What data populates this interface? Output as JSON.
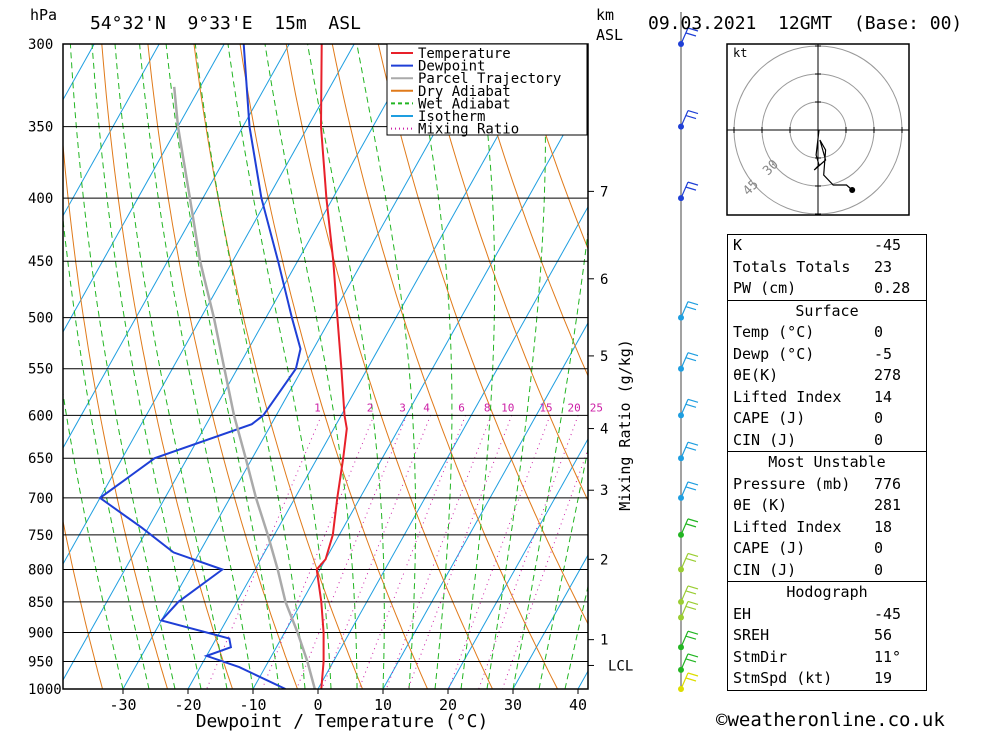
{
  "header": {
    "hpa_label": "hPa",
    "location": "54°32'N  9°33'E  15m  ASL",
    "km_label": "km",
    "asl_label": "ASL",
    "datetime": "09.03.2021  12GMT  (Base: 00)"
  },
  "legend": [
    {
      "label": "Temperature",
      "color": "#e8202a",
      "style": "solid"
    },
    {
      "label": "Dewpoint",
      "color": "#1f3fd6",
      "style": "solid"
    },
    {
      "label": "Parcel Trajectory",
      "color": "#aaaaaa",
      "style": "solid"
    },
    {
      "label": "Dry Adiabat",
      "color": "#e07a1a",
      "style": "solid"
    },
    {
      "label": "Wet Adiabat",
      "color": "#22b522",
      "style": "dashed"
    },
    {
      "label": "Isotherm",
      "color": "#1e9ee0",
      "style": "solid"
    },
    {
      "label": "Mixing Ratio",
      "color": "#cc1fa6",
      "style": "dotted"
    }
  ],
  "chart_data": {
    "type": "line",
    "chart_kind": "skew-T log-p sounding",
    "xlabel": "Dewpoint / Temperature (°C)",
    "ylabel_left": "hPa",
    "ylabel_right": "Mixing Ratio (g/kg)",
    "pressure_ticks": [
      1000,
      950,
      900,
      850,
      800,
      750,
      700,
      650,
      600,
      550,
      500,
      450,
      400,
      350,
      300
    ],
    "temp_ticks": [
      -30,
      -20,
      -10,
      0,
      10,
      20,
      30,
      40
    ],
    "km_ticks": [
      {
        "p": 957,
        "label": "LCL"
      },
      {
        "p": 912,
        "label": "1"
      },
      {
        "p": 785,
        "label": "2"
      },
      {
        "p": 690,
        "label": "3"
      },
      {
        "p": 615,
        "label": "4"
      },
      {
        "p": 537,
        "label": "5"
      },
      {
        "p": 465,
        "label": "6"
      },
      {
        "p": 395,
        "label": "7"
      }
    ],
    "mixing_ratio_labels": [
      "1",
      "2",
      "3",
      "4",
      "6",
      "8",
      "10",
      "15",
      "20",
      "25"
    ],
    "series": [
      {
        "name": "Temperature",
        "color": "#e8202a",
        "points": [
          [
            1000,
            0.5
          ],
          [
            950,
            -1.5
          ],
          [
            900,
            -4
          ],
          [
            850,
            -7
          ],
          [
            800,
            -10.5
          ],
          [
            785,
            -10
          ],
          [
            750,
            -11
          ],
          [
            700,
            -13.5
          ],
          [
            650,
            -16
          ],
          [
            615,
            -18
          ],
          [
            600,
            -19.5
          ],
          [
            550,
            -24
          ],
          [
            500,
            -29
          ],
          [
            450,
            -34.5
          ],
          [
            400,
            -41
          ],
          [
            350,
            -48
          ],
          [
            300,
            -55
          ]
        ]
      },
      {
        "name": "Dewpoint",
        "color": "#1f3fd6",
        "points": [
          [
            1000,
            -5
          ],
          [
            960,
            -14
          ],
          [
            940,
            -20
          ],
          [
            925,
            -17
          ],
          [
            910,
            -18
          ],
          [
            880,
            -30
          ],
          [
            850,
            -29
          ],
          [
            800,
            -25
          ],
          [
            775,
            -34
          ],
          [
            740,
            -41
          ],
          [
            700,
            -50
          ],
          [
            650,
            -45
          ],
          [
            610,
            -33
          ],
          [
            600,
            -32
          ],
          [
            550,
            -31
          ],
          [
            530,
            -32
          ],
          [
            500,
            -36
          ],
          [
            450,
            -43
          ],
          [
            400,
            -51
          ],
          [
            350,
            -59
          ],
          [
            300,
            -67
          ]
        ]
      },
      {
        "name": "Parcel Trajectory",
        "color": "#aaaaaa",
        "points": [
          [
            1000,
            -0.5
          ],
          [
            950,
            -4
          ],
          [
            900,
            -8
          ],
          [
            850,
            -12.5
          ],
          [
            800,
            -16.5
          ],
          [
            750,
            -21
          ],
          [
            700,
            -26
          ],
          [
            650,
            -31
          ],
          [
            600,
            -36.5
          ],
          [
            550,
            -42
          ],
          [
            500,
            -48
          ],
          [
            450,
            -55
          ],
          [
            400,
            -62
          ],
          [
            350,
            -70
          ],
          [
            325,
            -74
          ]
        ]
      }
    ],
    "wind_barbs": [
      {
        "p": 1000,
        "color": "#dddd00"
      },
      {
        "p": 965,
        "color": "#22b522"
      },
      {
        "p": 925,
        "color": "#22b522"
      },
      {
        "p": 875,
        "color": "#9acd32"
      },
      {
        "p": 850,
        "color": "#9acd32"
      },
      {
        "p": 800,
        "color": "#9acd32"
      },
      {
        "p": 750,
        "color": "#22b522"
      },
      {
        "p": 700,
        "color": "#1e9ee0"
      },
      {
        "p": 650,
        "color": "#1e9ee0"
      },
      {
        "p": 600,
        "color": "#1e9ee0"
      },
      {
        "p": 550,
        "color": "#1e9ee0"
      },
      {
        "p": 500,
        "color": "#1e9ee0"
      },
      {
        "p": 400,
        "color": "#1f3fd6"
      },
      {
        "p": 350,
        "color": "#1f3fd6"
      },
      {
        "p": 300,
        "color": "#1f3fd6"
      }
    ],
    "hodograph": {
      "unit_label": "kt",
      "ring_labels": [
        "30",
        "45"
      ],
      "points": [
        [
          0.5,
          0
        ],
        [
          -1,
          5
        ],
        [
          0.5,
          7
        ],
        [
          -2,
          8
        ],
        [
          4,
          6
        ],
        [
          1,
          2
        ],
        [
          4,
          4
        ],
        [
          3,
          9
        ],
        [
          8,
          11
        ],
        [
          15,
          11
        ],
        [
          18,
          12
        ]
      ]
    }
  },
  "stats": {
    "basic": [
      {
        "label": "K",
        "value": "-45"
      },
      {
        "label": "Totals Totals",
        "value": "23"
      },
      {
        "label": "PW (cm)",
        "value": "0.28"
      }
    ],
    "surface": {
      "title": "Surface",
      "rows": [
        {
          "label": "Temp (°C)",
          "value": "0"
        },
        {
          "label": "Dewp (°C)",
          "value": "-5"
        },
        {
          "label": "θE(K)",
          "value": "278"
        },
        {
          "label": "Lifted Index",
          "value": "14"
        },
        {
          "label": "CAPE (J)",
          "value": "0"
        },
        {
          "label": "CIN (J)",
          "value": "0"
        }
      ]
    },
    "most_unstable": {
      "title": "Most Unstable",
      "rows": [
        {
          "label": "Pressure (mb)",
          "value": "776"
        },
        {
          "label": "θE (K)",
          "value": "281"
        },
        {
          "label": "Lifted Index",
          "value": "18"
        },
        {
          "label": "CAPE (J)",
          "value": "0"
        },
        {
          "label": "CIN (J)",
          "value": "0"
        }
      ]
    },
    "hodograph": {
      "title": "Hodograph",
      "rows": [
        {
          "label": "EH",
          "value": "-45"
        },
        {
          "label": "SREH",
          "value": "56"
        },
        {
          "label": "StmDir",
          "value": "11°"
        },
        {
          "label": "StmSpd (kt)",
          "value": "19"
        }
      ]
    }
  },
  "copyright": "©weatheronline.co.uk"
}
